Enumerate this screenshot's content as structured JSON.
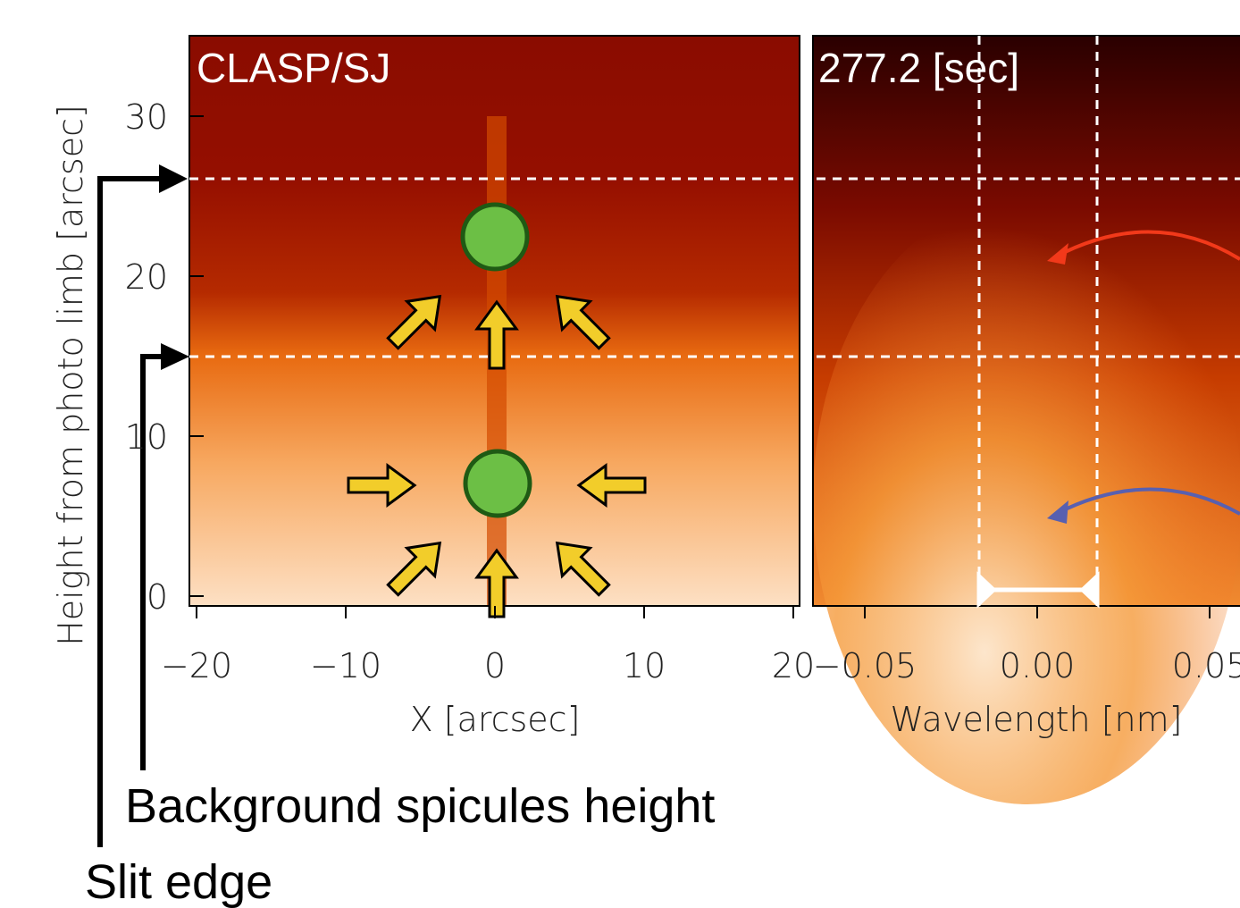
{
  "left_panel": {
    "label": "CLASP/SJ",
    "x_axis": {
      "title": "X [arcsec]",
      "ticks": [
        "−20",
        "−10",
        "0",
        "10",
        "20"
      ]
    },
    "y_axis": {
      "title": "Height from photo limb [arcsec]",
      "ticks": [
        "0",
        "10",
        "20",
        "30"
      ]
    }
  },
  "right_panel": {
    "label": "277.2 [sec]",
    "x_axis": {
      "title": "Wavelength [nm]",
      "ticks": [
        "−0.05",
        "0.00",
        "0.05"
      ]
    }
  },
  "annotations": {
    "background_height": "Background spicules height",
    "slit_edge": "Slit edge"
  }
}
